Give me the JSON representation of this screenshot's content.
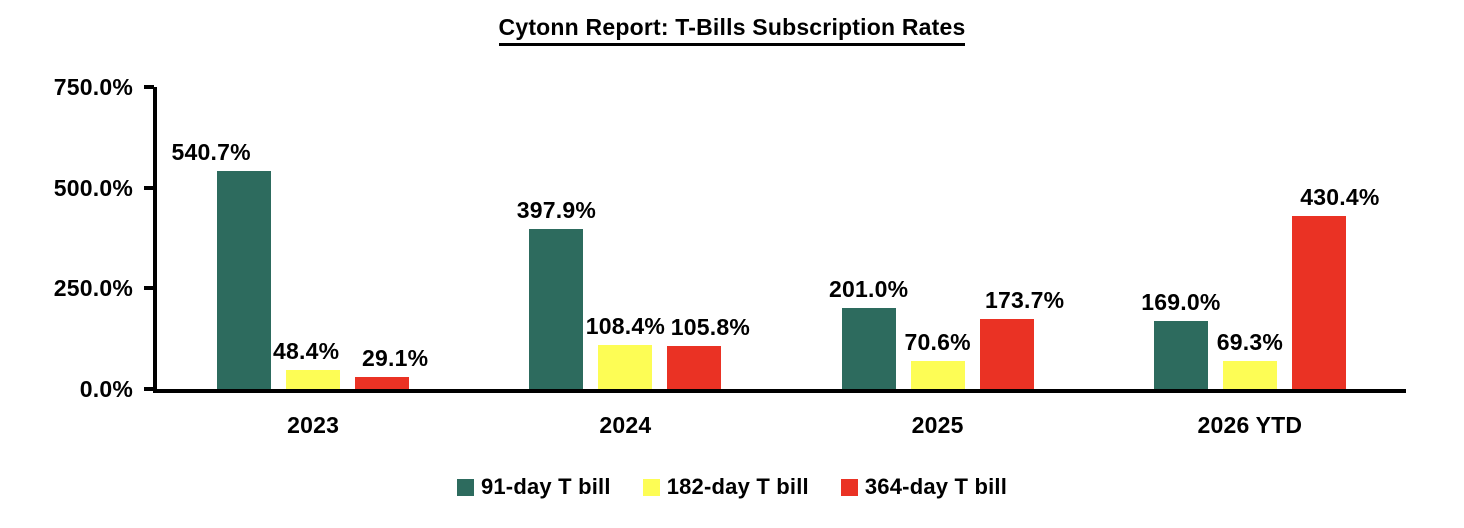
{
  "chart_data": {
    "type": "bar",
    "title": "Cytonn Report: T-Bills Subscription Rates",
    "categories": [
      "2023",
      "2024",
      "2025",
      "2026 YTD"
    ],
    "series": [
      {
        "name": "91-day T bill",
        "color": "#2D6B5E",
        "values": [
          540.7,
          397.9,
          201.0,
          169.0
        ],
        "labels": [
          "540.7%",
          "397.9%",
          "201.0%",
          "169.0%"
        ],
        "label_dx": [
          -33,
          0,
          0,
          0
        ]
      },
      {
        "name": "182-day T bill",
        "color": "#FDFD55",
        "values": [
          48.4,
          108.4,
          70.6,
          69.3
        ],
        "labels": [
          "48.4%",
          "108.4%",
          "70.6%",
          "69.3%"
        ],
        "label_dx": [
          -7,
          0,
          0,
          0
        ]
      },
      {
        "name": "364-day T bill",
        "color": "#EA3224",
        "values": [
          29.1,
          105.8,
          173.7,
          430.4
        ],
        "labels": [
          "29.1%",
          "105.8%",
          "173.7%",
          "430.4%"
        ],
        "label_dx": [
          13,
          16,
          18,
          21
        ]
      }
    ],
    "y_axis": {
      "min": 0,
      "max": 750,
      "ticks": [
        {
          "label": "750.0%",
          "value": 750
        },
        {
          "label": "500.0%",
          "value": 500
        },
        {
          "label": "250.0%",
          "value": 250
        },
        {
          "label": "0.0%",
          "value": 0
        }
      ]
    },
    "grid": false,
    "legend_position": "bottom"
  }
}
